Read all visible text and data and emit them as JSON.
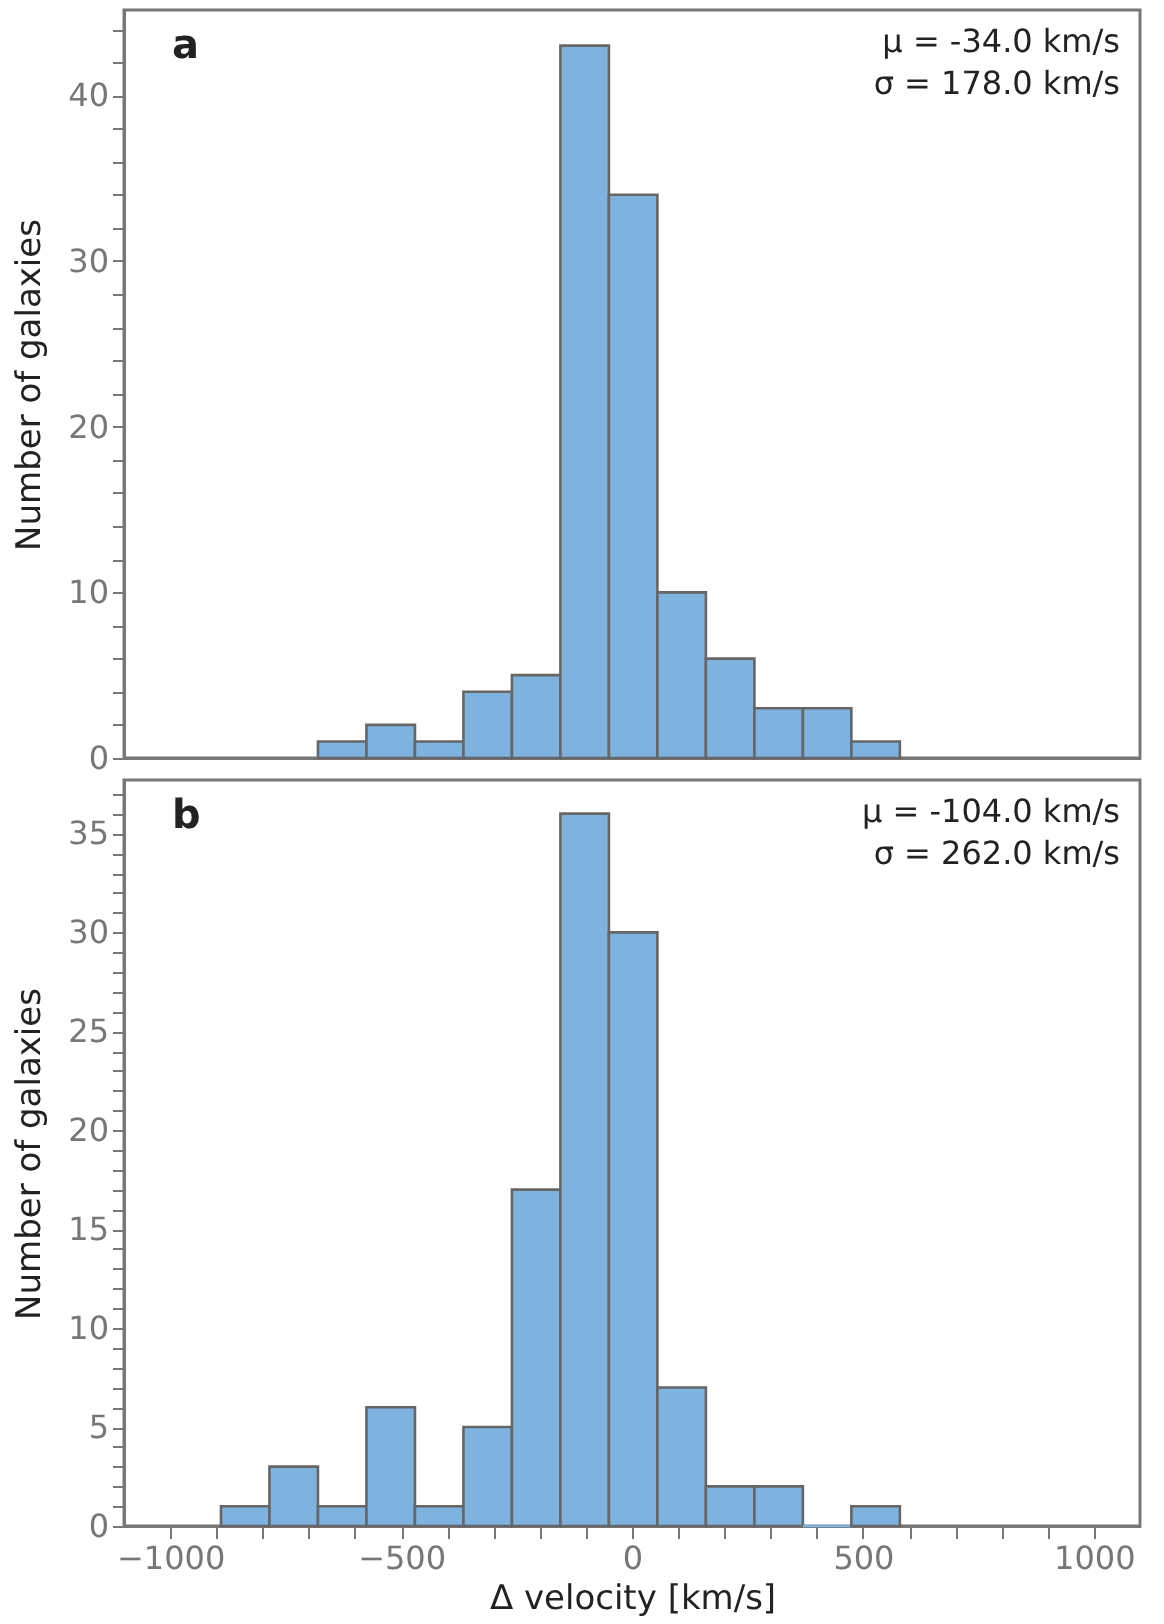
{
  "chart_data": [
    {
      "type": "histogram",
      "ylabel": "Number of galaxies",
      "annotations": [
        "a",
        "μ = -34.0 km/s",
        "σ = 178.0 km/s"
      ],
      "color": "#7eb3e0",
      "bins": [
        -680,
        -575,
        -470,
        -365,
        -260,
        -155,
        -50,
        55,
        160,
        265,
        370,
        475,
        580
      ],
      "values": [
        1,
        2,
        1,
        4,
        5,
        43,
        34,
        10,
        6,
        3,
        3,
        1
      ],
      "xlim": [
        -1100,
        1100
      ],
      "ylim": [
        0,
        45.15
      ],
      "yticks": [
        0,
        {
          "value": 2,
          "label": null
        },
        {
          "value": 4,
          "label": null
        },
        {
          "value": 6,
          "label": null
        },
        {
          "value": 8,
          "label": null
        },
        10,
        {
          "value": 12,
          "label": null
        },
        {
          "value": 14,
          "label": null
        },
        {
          "value": 16,
          "label": null
        },
        {
          "value": 18,
          "label": null
        },
        20,
        {
          "value": 22,
          "label": null
        },
        {
          "value": 24,
          "label": null
        },
        {
          "value": 26,
          "label": null
        },
        {
          "value": 28,
          "label": null
        },
        30,
        {
          "value": 32,
          "label": null
        },
        {
          "value": 34,
          "label": null
        },
        {
          "value": 36,
          "label": null
        },
        {
          "value": 38,
          "label": null
        },
        40,
        {
          "value": 42,
          "label": null
        },
        {
          "value": 44,
          "label": null
        }
      ],
      "tick_labels": "y",
      "grid": false
    },
    {
      "type": "histogram",
      "xlabel": "Δ velocity [km/s]",
      "ylabel": "Number of galaxies",
      "annotations": [
        "b",
        "μ = -104.0 km/s",
        "σ = 262.0 km/s"
      ],
      "color": "#7eb3e0",
      "bins": [
        -890,
        -785,
        -680,
        -575,
        -470,
        -365,
        -260,
        -155,
        -50,
        55,
        160,
        265,
        370,
        475,
        580
      ],
      "values": [
        1,
        3,
        1,
        6,
        1,
        5,
        17,
        36,
        30,
        7,
        2,
        2,
        0,
        1
      ],
      "xlim": [
        -1100,
        1100
      ],
      "xticks": [
        {
          "value": -1000,
          "label": "−1000"
        },
        {
          "value": -900,
          "label": null
        },
        {
          "value": -800,
          "label": null
        },
        {
          "value": -700,
          "label": null
        },
        {
          "value": -600,
          "label": null
        },
        {
          "value": -500,
          "label": "−500"
        },
        {
          "value": -400,
          "label": null
        },
        {
          "value": -300,
          "label": null
        },
        {
          "value": -200,
          "label": null
        },
        {
          "value": -100,
          "label": null
        },
        0,
        {
          "value": 100,
          "label": null
        },
        {
          "value": 200,
          "label": null
        },
        {
          "value": 300,
          "label": null
        },
        {
          "value": 400,
          "label": null
        },
        500,
        {
          "value": 600,
          "label": null
        },
        {
          "value": 700,
          "label": null
        },
        {
          "value": 800,
          "label": null
        },
        {
          "value": 900,
          "label": null
        },
        1000
      ],
      "ylim": [
        0,
        37.7
      ],
      "yticks": [
        0,
        {
          "value": 1,
          "label": null
        },
        {
          "value": 2,
          "label": null
        },
        {
          "value": 3,
          "label": null
        },
        {
          "value": 4,
          "label": null
        },
        5,
        {
          "value": 6,
          "label": null
        },
        {
          "value": 7,
          "label": null
        },
        {
          "value": 8,
          "label": null
        },
        {
          "value": 9,
          "label": null
        },
        10,
        {
          "value": 11,
          "label": null
        },
        {
          "value": 12,
          "label": null
        },
        {
          "value": 13,
          "label": null
        },
        {
          "value": 14,
          "label": null
        },
        15,
        {
          "value": 16,
          "label": null
        },
        {
          "value": 17,
          "label": null
        },
        {
          "value": 18,
          "label": null
        },
        {
          "value": 19,
          "label": null
        },
        20,
        {
          "value": 21,
          "label": null
        },
        {
          "value": 22,
          "label": null
        },
        {
          "value": 23,
          "label": null
        },
        {
          "value": 24,
          "label": null
        },
        25,
        {
          "value": 26,
          "label": null
        },
        {
          "value": 27,
          "label": null
        },
        {
          "value": 28,
          "label": null
        },
        {
          "value": 29,
          "label": null
        },
        30,
        {
          "value": 31,
          "label": null
        },
        {
          "value": 32,
          "label": null
        },
        {
          "value": 33,
          "label": null
        },
        {
          "value": 34,
          "label": null
        },
        35,
        {
          "value": 36,
          "label": null
        },
        {
          "value": 37,
          "label": null
        }
      ]
    }
  ]
}
